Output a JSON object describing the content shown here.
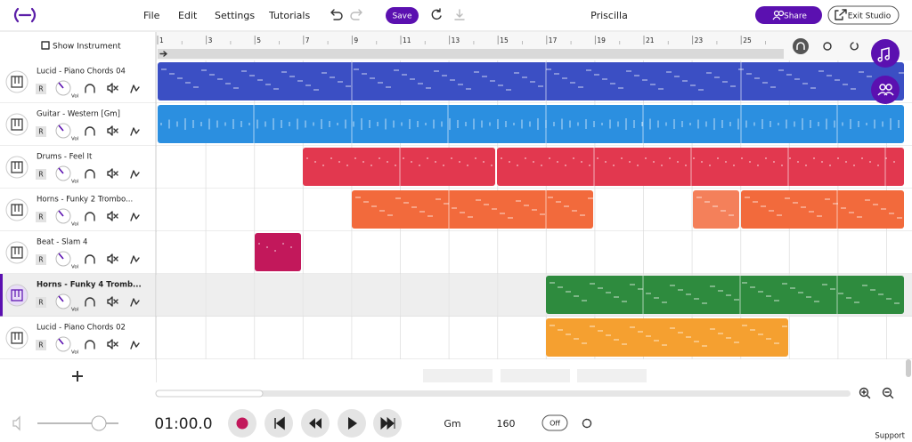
{
  "header": {
    "menu": [
      "File",
      "Edit",
      "Settings",
      "Tutorials"
    ],
    "save": "Save",
    "project_title": "Priscilla",
    "share": "Share",
    "exit": "Exit Studio"
  },
  "sidebar": {
    "show_instrument": "Show Instrument"
  },
  "ruler": {
    "bars": [
      "1",
      "3",
      "5",
      "7",
      "9",
      "11",
      "13",
      "15",
      "17",
      "19",
      "21",
      "23",
      "25"
    ]
  },
  "tracks": [
    {
      "name": "Lucid - Piano Chords 04",
      "record": "R",
      "volume": "Vol"
    },
    {
      "name": "Guitar - Western [Gm]",
      "record": "R",
      "volume": "Vol"
    },
    {
      "name": "Drums - Feel It",
      "record": "R",
      "volume": "Vol"
    },
    {
      "name": "Horns - Funky 2 Trombo...",
      "record": "R",
      "volume": "Vol"
    },
    {
      "name": "Beat - Slam 4",
      "record": "R",
      "volume": "Vol"
    },
    {
      "name": "Horns - Funky 4 Tromb...",
      "record": "R",
      "volume": "Vol"
    },
    {
      "name": "Lucid - Piano Chords 02",
      "record": "R",
      "volume": "Vol"
    }
  ],
  "transport": {
    "time": "01:00.0",
    "key": "Gm",
    "tempo": "160",
    "metronome": "Off",
    "support": "Support"
  }
}
